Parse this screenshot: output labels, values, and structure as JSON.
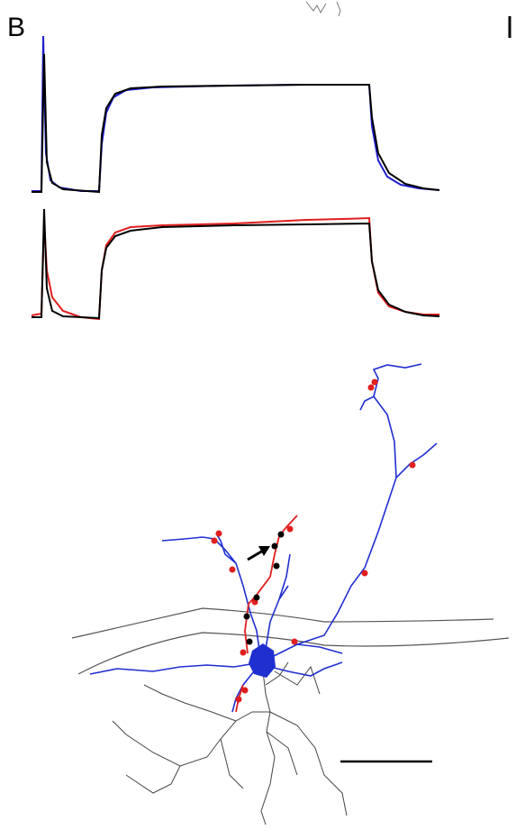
{
  "panel_label": "B"
}
